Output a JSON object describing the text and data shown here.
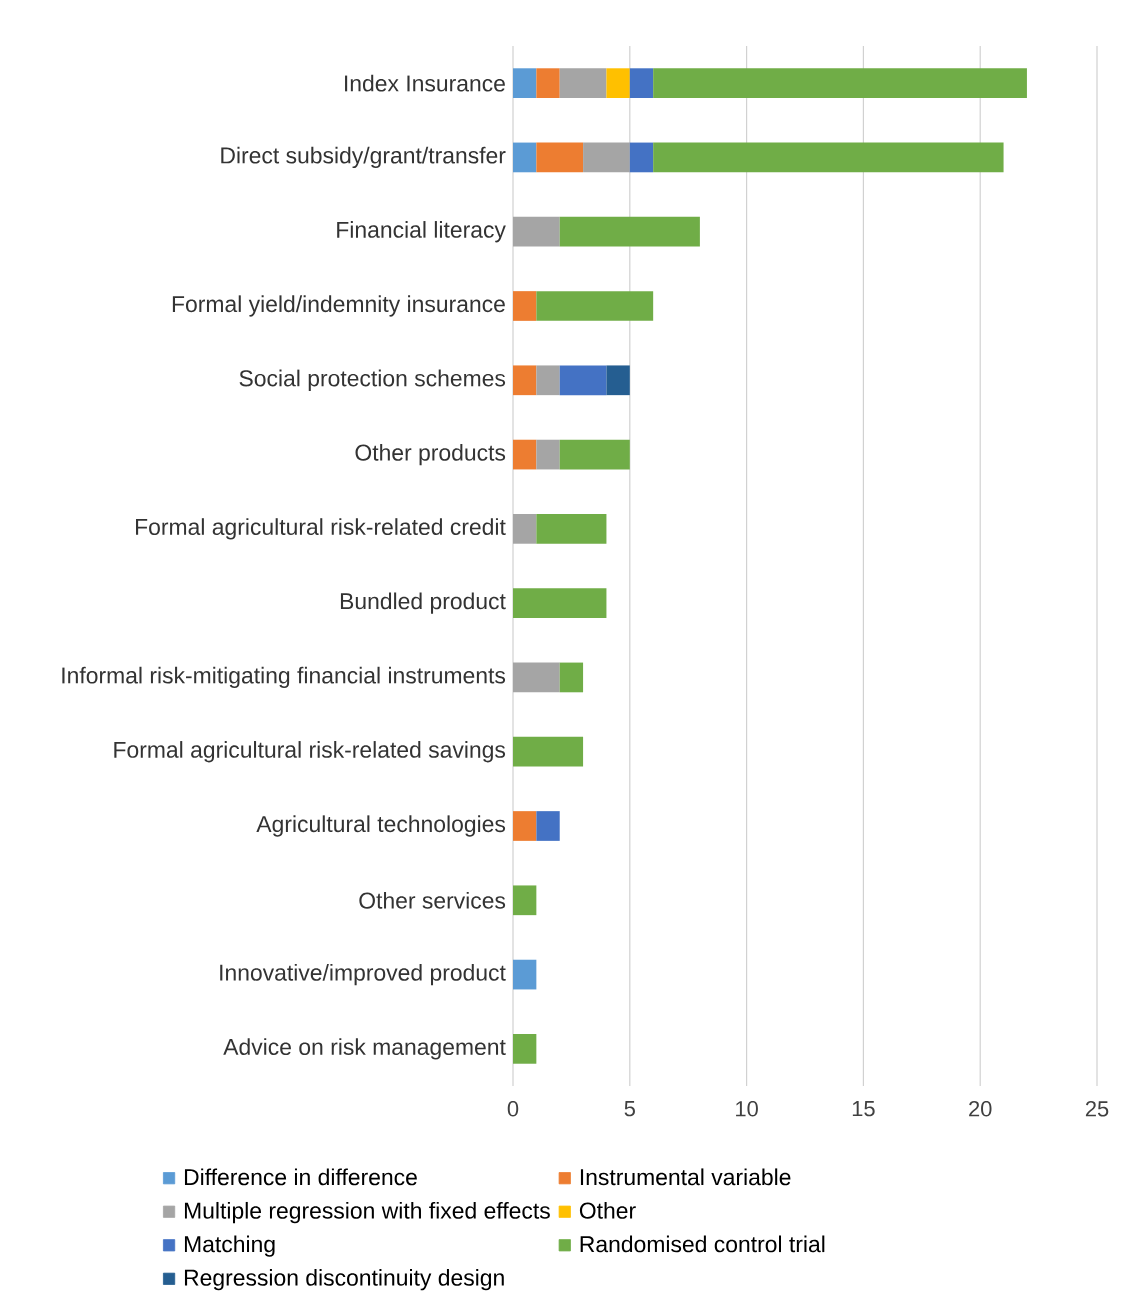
{
  "chart_data": {
    "type": "bar",
    "orientation": "horizontal",
    "stacked": true,
    "categories": [
      "Index Insurance",
      "Direct subsidy/grant/transfer",
      "Financial literacy",
      "Formal yield/indemnity insurance",
      "Social protection schemes",
      "Other products",
      "Formal agricultural risk-related credit",
      "Bundled product",
      "Informal risk-mitigating financial instruments",
      "Formal agricultural risk-related savings",
      "Agricultural technologies",
      "Other services",
      "Innovative/improved product",
      "Advice on risk management"
    ],
    "series": [
      {
        "name": "Difference in difference",
        "color": "#5b9bd5",
        "values": [
          1,
          1,
          null,
          null,
          null,
          null,
          null,
          null,
          null,
          null,
          null,
          null,
          1,
          null
        ]
      },
      {
        "name": "Instrumental variable",
        "color": "#ed7d31",
        "values": [
          1,
          2,
          null,
          1,
          1,
          1,
          null,
          null,
          null,
          null,
          1,
          null,
          null,
          null
        ]
      },
      {
        "name": "Multiple regression with fixed effects",
        "color": "#a5a5a5",
        "values": [
          2,
          2,
          2,
          null,
          1,
          1,
          1,
          null,
          2,
          null,
          null,
          null,
          null,
          null
        ]
      },
      {
        "name": "Other",
        "color": "#ffc000",
        "values": [
          1,
          null,
          null,
          null,
          null,
          null,
          null,
          null,
          null,
          null,
          null,
          null,
          null,
          null
        ]
      },
      {
        "name": "Matching",
        "color": "#4472c4",
        "values": [
          1,
          1,
          null,
          null,
          2,
          null,
          null,
          null,
          null,
          null,
          1,
          null,
          null,
          null
        ]
      },
      {
        "name": "Randomised control trial",
        "color": "#70ad47",
        "values": [
          16,
          15,
          6,
          5,
          null,
          3,
          3,
          4,
          1,
          3,
          null,
          1,
          null,
          1
        ]
      },
      {
        "name": "Regression discontinuity design",
        "color": "#255e91",
        "values": [
          null,
          null,
          null,
          null,
          1,
          null,
          null,
          null,
          null,
          null,
          null,
          null,
          null,
          null
        ]
      }
    ],
    "xlim": [
      0,
      25
    ],
    "xticks": [
      0,
      5,
      10,
      15,
      20,
      25
    ],
    "grid": "x",
    "legend": "bottom"
  }
}
